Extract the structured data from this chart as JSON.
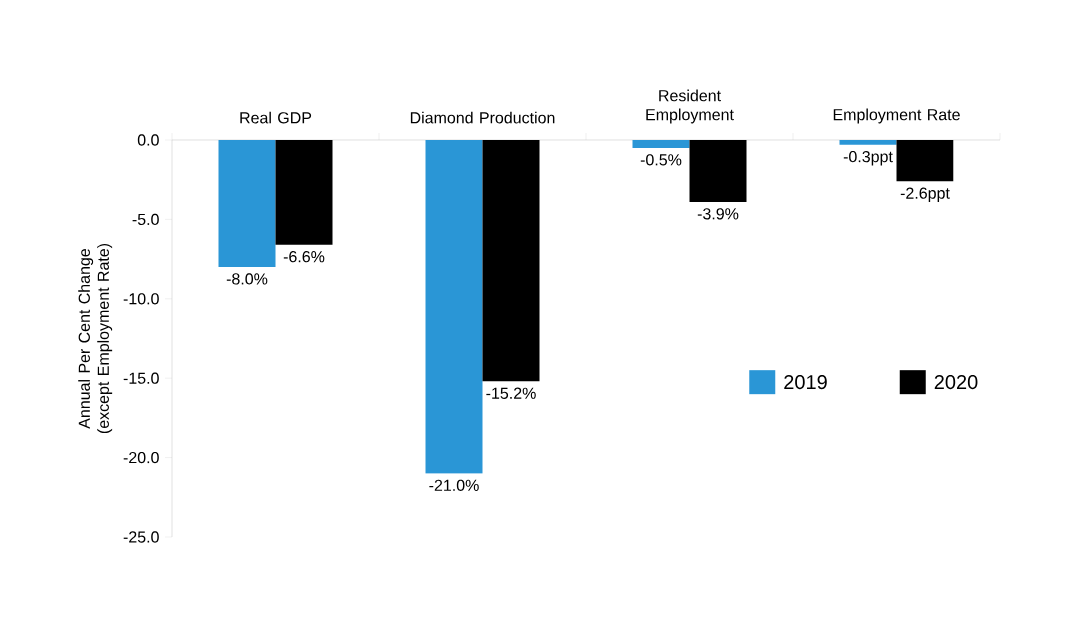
{
  "chart_data": {
    "type": "bar",
    "categories": [
      "Real GDP",
      "Diamond Production",
      "Resident Employment",
      "Employment Rate"
    ],
    "series": [
      {
        "name": "2019",
        "color": "#2a96d6",
        "values": [
          -8.0,
          -21.0,
          -0.5,
          -0.3
        ],
        "value_labels": [
          "-8.0%",
          "-21.0%",
          "-0.5%",
          "-0.3ppt"
        ]
      },
      {
        "name": "2020",
        "color": "#000000",
        "values": [
          -6.6,
          -15.2,
          -3.9,
          -2.6
        ],
        "value_labels": [
          "-6.6%",
          "-15.2%",
          "-3.9%",
          "-2.6ppt"
        ]
      }
    ],
    "ylabel": "Annual Per Cent Change (except Employment Rate)",
    "ylim": [
      -25,
      0
    ],
    "yticks": [
      {
        "value": -25,
        "label": "-25.0"
      },
      {
        "value": -20,
        "label": "-20.0"
      },
      {
        "value": -15,
        "label": "-15.0"
      },
      {
        "value": -10,
        "label": "-10.0"
      },
      {
        "value": -5,
        "label": "-5.0"
      },
      {
        "value": 0,
        "label": "0.0"
      }
    ],
    "legend": "right",
    "grid": false
  }
}
